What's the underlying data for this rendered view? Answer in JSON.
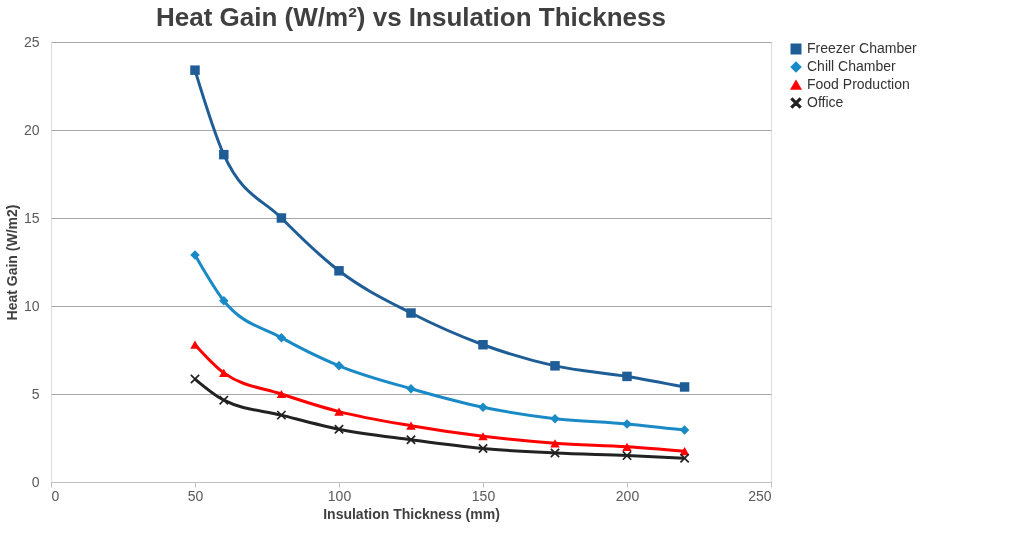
{
  "chart_data": {
    "type": "line",
    "title": "Heat Gain (W/m²) vs Insulation Thickness",
    "xlabel": "Insulation Thickness (mm)",
    "ylabel": "Heat Gain (W/m2)",
    "x": [
      50,
      60,
      80,
      100,
      125,
      150,
      175,
      200,
      220
    ],
    "series": [
      {
        "name": "Freezer Chamber",
        "color": "#1f5d96",
        "marker": "square",
        "values": [
          23.4,
          18.6,
          15.0,
          12.0,
          9.6,
          7.8,
          6.6,
          6.0,
          5.4
        ]
      },
      {
        "name": "Chill Chamber",
        "color": "#1a8ac6",
        "marker": "diamond",
        "values": [
          12.9,
          10.3,
          8.2,
          6.6,
          5.3,
          4.25,
          3.6,
          3.3,
          2.95
        ]
      },
      {
        "name": "Food Production",
        "color": "#ff0000",
        "marker": "triangle",
        "values": [
          7.8,
          6.2,
          5.0,
          4.0,
          3.2,
          2.6,
          2.2,
          2.0,
          1.75
        ]
      },
      {
        "name": "Office",
        "color": "#222222",
        "marker": "cross",
        "values": [
          5.85,
          4.65,
          3.8,
          3.0,
          2.4,
          1.9,
          1.65,
          1.5,
          1.35
        ]
      }
    ],
    "xlim": [
      0,
      250
    ],
    "xticks": [
      0,
      50,
      100,
      150,
      200,
      250
    ],
    "ylim": [
      0,
      25
    ],
    "yticks": [
      0,
      5,
      10,
      15,
      20,
      25
    ],
    "grid": "y",
    "legend": "right",
    "line_style": "solid"
  }
}
